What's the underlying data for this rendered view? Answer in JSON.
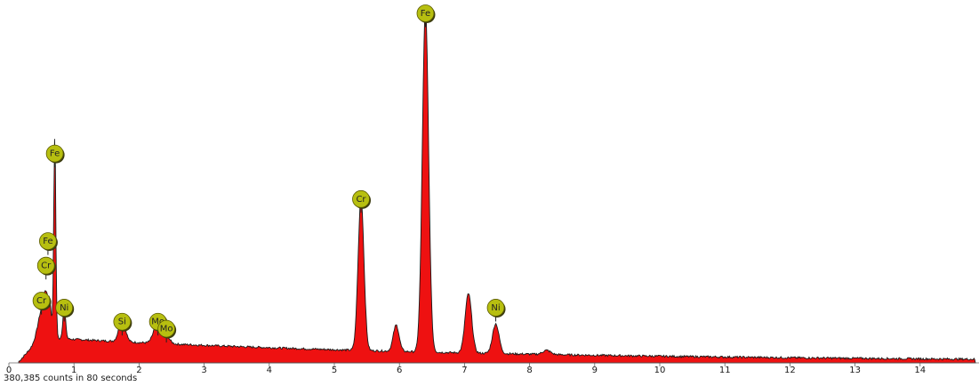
{
  "chart_data": {
    "type": "area",
    "title": "",
    "xlabel": "",
    "ylabel": "",
    "xlim": [
      0,
      14.85
    ],
    "ylim": [
      0,
      1
    ],
    "grid": false,
    "x_ticks": [
      0,
      1,
      2,
      3,
      4,
      5,
      6,
      7,
      8,
      9,
      10,
      11,
      12,
      13,
      14
    ],
    "colors": {
      "fill": "#ee1111",
      "outline": "#1a1a1a",
      "marker_fill": "#b7bf10",
      "marker_stroke": "#5a5a00"
    },
    "peaks": [
      {
        "x": 0.52,
        "height": 0.085,
        "sigma": 0.07
      },
      {
        "x": 0.57,
        "height": 0.065,
        "sigma": 0.03
      },
      {
        "x": 0.63,
        "height": 0.075,
        "sigma": 0.025
      },
      {
        "x": 0.705,
        "height": 0.575,
        "sigma": 0.016
      },
      {
        "x": 0.85,
        "height": 0.085,
        "sigma": 0.022
      },
      {
        "x": 1.74,
        "height": 0.065,
        "sigma": 0.05
      },
      {
        "x": 2.29,
        "height": 0.065,
        "sigma": 0.06
      },
      {
        "x": 2.4,
        "height": 0.025,
        "sigma": 0.06
      },
      {
        "x": 5.41,
        "height": 0.435,
        "sigma": 0.045
      },
      {
        "x": 5.95,
        "height": 0.075,
        "sigma": 0.045
      },
      {
        "x": 6.4,
        "height": 0.98,
        "sigma": 0.048
      },
      {
        "x": 7.06,
        "height": 0.17,
        "sigma": 0.05
      },
      {
        "x": 7.48,
        "height": 0.085,
        "sigma": 0.05
      },
      {
        "x": 8.26,
        "height": 0.012,
        "sigma": 0.06
      }
    ],
    "markers": [
      {
        "element": "Fe",
        "x": 6.4,
        "level": 1.0
      },
      {
        "element": "Fe",
        "x": 0.705,
        "level": 0.6
      },
      {
        "element": "Fe",
        "x": 0.6,
        "level": 0.35
      },
      {
        "element": "Cr",
        "x": 0.57,
        "level": 0.28
      },
      {
        "element": "Cr",
        "x": 0.5,
        "level": 0.18
      },
      {
        "element": "Ni",
        "x": 0.85,
        "level": 0.16
      },
      {
        "element": "Si",
        "x": 1.74,
        "level": 0.12
      },
      {
        "element": "Mo",
        "x": 2.29,
        "level": 0.12
      },
      {
        "element": "Mo",
        "x": 2.42,
        "level": 0.1
      },
      {
        "element": "Cr",
        "x": 5.41,
        "level": 0.47
      },
      {
        "element": "Ni",
        "x": 7.48,
        "level": 0.16
      }
    ]
  },
  "footer": {
    "counts_text": "380,385 counts in 80 seconds"
  }
}
